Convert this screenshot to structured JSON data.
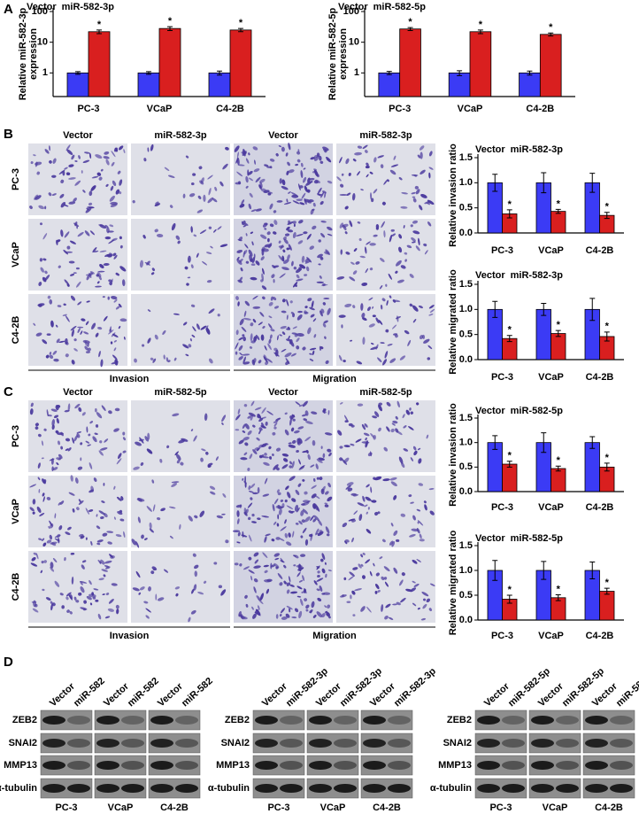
{
  "panel_labels": [
    "A",
    "B",
    "C",
    "D"
  ],
  "chart_data": [
    {
      "type": "bar",
      "ylabel": [
        "Relative miR-582-3p",
        "expression"
      ],
      "categories": [
        "PC-3",
        "VCaP",
        "C4-2B"
      ],
      "series": [
        {
          "name": "Vector",
          "color": "#3b3bf5",
          "values": [
            1,
            1,
            1
          ],
          "errors": [
            0.1,
            0.1,
            0.15
          ]
        },
        {
          "name": "miR-582-3p",
          "color": "#d91f1f",
          "values": [
            22,
            28,
            25
          ],
          "errors": [
            3,
            4,
            3
          ]
        }
      ],
      "log_scale": true,
      "ylim": [
        0.17,
        100
      ],
      "yticks": [
        1,
        10,
        100
      ],
      "significance": [
        "*",
        "*",
        "*"
      ]
    },
    {
      "type": "bar",
      "ylabel": [
        "Relative miR-582-5p",
        "expression"
      ],
      "categories": [
        "PC-3",
        "VCaP",
        "C4-2B"
      ],
      "series": [
        {
          "name": "Vector",
          "color": "#3b3bf5",
          "values": [
            1,
            1,
            1
          ],
          "errors": [
            0.12,
            0.18,
            0.15
          ]
        },
        {
          "name": "miR-582-5p",
          "color": "#d91f1f",
          "values": [
            27,
            22,
            18
          ],
          "errors": [
            3,
            3,
            2
          ]
        }
      ],
      "log_scale": true,
      "ylim": [
        0.17,
        100
      ],
      "yticks": [
        1,
        10,
        100
      ],
      "significance": [
        "*",
        "*",
        "*"
      ]
    },
    {
      "type": "bar",
      "ylabel": [
        "Relative invasion ratio"
      ],
      "categories": [
        "PC-3",
        "VCaP",
        "C4-2B"
      ],
      "series": [
        {
          "name": "Vector",
          "color": "#3b3bf5",
          "values": [
            1,
            1,
            1
          ],
          "errors": [
            0.17,
            0.2,
            0.19
          ]
        },
        {
          "name": "miR-582-3p",
          "color": "#d91f1f",
          "values": [
            0.38,
            0.43,
            0.35
          ],
          "errors": [
            0.08,
            0.04,
            0.06
          ]
        }
      ],
      "log_scale": false,
      "ylim": [
        0,
        1.5
      ],
      "yticks": [
        {
          "value": 0,
          "label": "0.0"
        },
        {
          "value": 0.5,
          "label": "0.5"
        },
        {
          "value": 1,
          "label": "1.0"
        },
        {
          "value": 1.5,
          "label": "1.5"
        }
      ],
      "significance": [
        "*",
        "*",
        "*"
      ]
    },
    {
      "type": "bar",
      "ylabel": [
        "Relative migrated ratio"
      ],
      "categories": [
        "PC-3",
        "VCaP",
        "C4-2B"
      ],
      "series": [
        {
          "name": "Vector",
          "color": "#3b3bf5",
          "values": [
            1,
            1,
            1
          ],
          "errors": [
            0.16,
            0.12,
            0.22
          ]
        },
        {
          "name": "miR-582-3p",
          "color": "#d91f1f",
          "values": [
            0.42,
            0.52,
            0.46
          ],
          "errors": [
            0.06,
            0.06,
            0.09
          ]
        }
      ],
      "log_scale": false,
      "ylim": [
        0,
        1.5
      ],
      "yticks": [
        {
          "value": 0,
          "label": "0.0"
        },
        {
          "value": 0.5,
          "label": "0.5"
        },
        {
          "value": 1,
          "label": "1.0"
        },
        {
          "value": 1.5,
          "label": "1.5"
        }
      ],
      "significance": [
        "*",
        "*",
        "*"
      ]
    },
    {
      "type": "bar",
      "ylabel": [
        "Relative invasion ratio"
      ],
      "categories": [
        "PC-3",
        "VCaP",
        "C4-2B"
      ],
      "series": [
        {
          "name": "Vector",
          "color": "#3b3bf5",
          "values": [
            1,
            1,
            1
          ],
          "errors": [
            0.14,
            0.2,
            0.12
          ]
        },
        {
          "name": "miR-582-5p",
          "color": "#d91f1f",
          "values": [
            0.56,
            0.47,
            0.5
          ],
          "errors": [
            0.06,
            0.05,
            0.08
          ]
        }
      ],
      "log_scale": false,
      "ylim": [
        0,
        1.5
      ],
      "yticks": [
        {
          "value": 0,
          "label": "0.0"
        },
        {
          "value": 0.5,
          "label": "0.5"
        },
        {
          "value": 1,
          "label": "1.0"
        },
        {
          "value": 1.5,
          "label": "1.5"
        }
      ],
      "significance": [
        "*",
        "*",
        "*"
      ]
    },
    {
      "type": "bar",
      "ylabel": [
        "Relative migrated ratio"
      ],
      "categories": [
        "PC-3",
        "VCaP",
        "C4-2B"
      ],
      "series": [
        {
          "name": "Vector",
          "color": "#3b3bf5",
          "values": [
            1,
            1,
            1
          ],
          "errors": [
            0.2,
            0.18,
            0.17
          ]
        },
        {
          "name": "miR-582-5p",
          "color": "#d91f1f",
          "values": [
            0.42,
            0.45,
            0.58
          ],
          "errors": [
            0.08,
            0.06,
            0.06
          ]
        }
      ],
      "log_scale": false,
      "ylim": [
        0,
        1.5
      ],
      "yticks": [
        {
          "value": 0,
          "label": "0.0"
        },
        {
          "value": 0.5,
          "label": "0.5"
        },
        {
          "value": 1,
          "label": "1.0"
        },
        {
          "value": 1.5,
          "label": "1.5"
        }
      ],
      "significance": [
        "*",
        "*",
        "*"
      ]
    }
  ],
  "panel_b": {
    "columns": [
      "Vector",
      "miR-582-3p",
      "Vector",
      "miR-582-3p"
    ],
    "rows": [
      "PC-3",
      "VCaP",
      "C4-2B"
    ],
    "groups": [
      "Invasion",
      "Migration"
    ]
  },
  "panel_c": {
    "columns": [
      "Vector",
      "miR-582-5p",
      "Vector",
      "miR-582-5p"
    ],
    "rows": [
      "PC-3",
      "VCaP",
      "C4-2B"
    ],
    "groups": [
      "Invasion",
      "Migration"
    ]
  },
  "panel_d": {
    "row_labels": [
      "ZEB2",
      "SNAI2",
      "MMP13",
      "α-tubulin"
    ],
    "cell_lines": [
      "PC-3",
      "VCaP",
      "C4-2B"
    ],
    "blots": [
      {
        "lanes": [
          "Vector",
          "miR-582"
        ]
      },
      {
        "lanes": [
          "Vector",
          "miR-582-3p"
        ]
      },
      {
        "lanes": [
          "Vector",
          "miR-582-5p"
        ]
      }
    ]
  }
}
